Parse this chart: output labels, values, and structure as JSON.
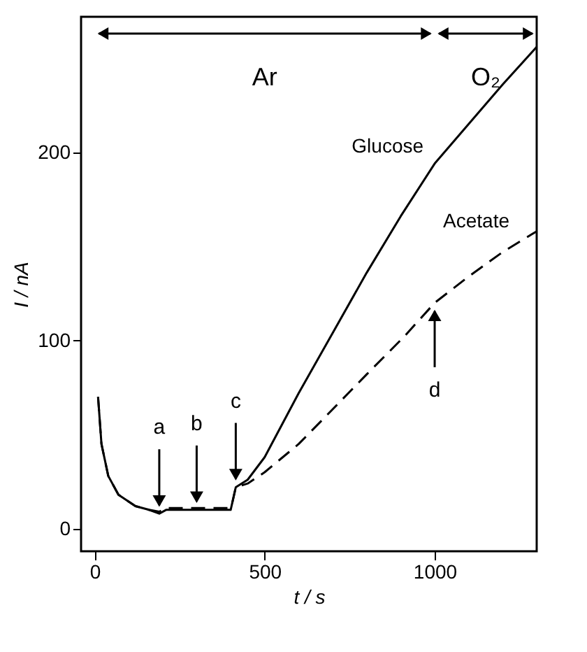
{
  "chart_data": {
    "type": "line",
    "xlabel": "t / s",
    "ylabel": "I / nA",
    "xlim": [
      -40,
      1300
    ],
    "ylim": [
      -12,
      272
    ],
    "xticks": [
      0,
      500,
      1000
    ],
    "yticks": [
      0,
      100,
      200
    ],
    "grid": false,
    "series": [
      {
        "name": "Glucose",
        "color": "#000000",
        "line_style": "solid",
        "x": [
          10,
          20,
          40,
          70,
          120,
          160,
          190,
          210,
          300,
          400,
          405,
          415,
          450,
          500,
          600,
          700,
          800,
          900,
          1000,
          1100,
          1200,
          1300
        ],
        "values": [
          70,
          45,
          28,
          18,
          12,
          10,
          8,
          10,
          10,
          10,
          14,
          22,
          26,
          38,
          72,
          104,
          136,
          166,
          194,
          215,
          236,
          256
        ]
      },
      {
        "name": "Acetate",
        "color": "#000000",
        "line_style": "dashed",
        "x": [
          10,
          20,
          40,
          70,
          120,
          160,
          190,
          210,
          300,
          400,
          405,
          415,
          450,
          500,
          600,
          676,
          800,
          910,
          1000,
          1100,
          1200,
          1300
        ],
        "values": [
          70,
          45,
          28,
          18,
          12,
          10,
          9,
          11,
          11,
          11,
          14,
          22,
          24,
          30,
          45,
          59,
          82,
          102,
          120,
          134,
          147,
          158
        ]
      }
    ],
    "annotations": [
      {
        "text": "a",
        "x": 190,
        "y": 8
      },
      {
        "text": "b",
        "x": 300,
        "y": 10
      },
      {
        "text": "c",
        "x": 415,
        "y": 22
      },
      {
        "text": "d",
        "x": 1000,
        "y": 120
      },
      "Ar",
      "O₂"
    ]
  }
}
